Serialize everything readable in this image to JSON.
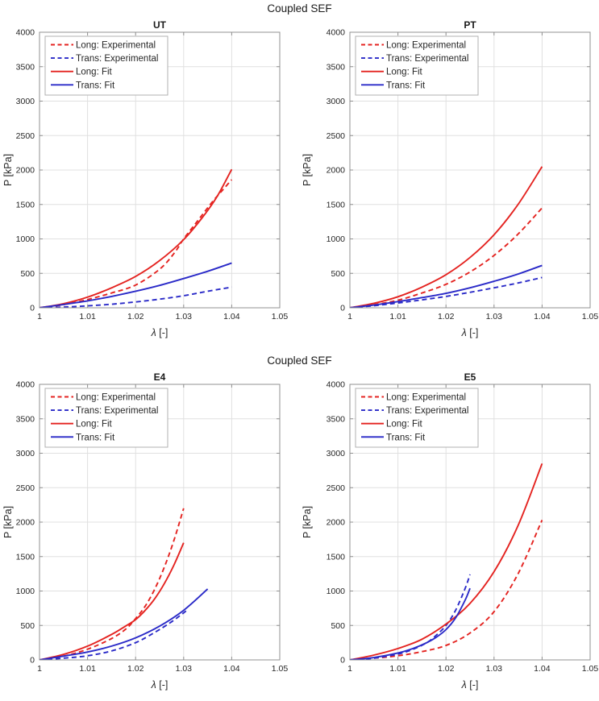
{
  "palette": {
    "red": "#e42320",
    "blue": "#2a2ac8",
    "axis": "#909090",
    "grid": "#e0e0e0",
    "text": "#262626",
    "title": "#1a1a1a",
    "legend_border": "#b0b0b0",
    "background": "#ffffff"
  },
  "figures": [
    {
      "suptitle": "Coupled SEF",
      "chart_indexes": [
        0,
        1
      ]
    },
    {
      "suptitle": "Coupled SEF",
      "chart_indexes": [
        2,
        3
      ]
    }
  ],
  "chart_data": [
    {
      "type": "line",
      "title": "UT",
      "xlabel": "λ [-]",
      "ylabel": "P [kPa]",
      "xlim": [
        1,
        1.05
      ],
      "ylim": [
        0,
        4000
      ],
      "xticks": [
        1,
        1.01,
        1.02,
        1.03,
        1.04,
        1.05
      ],
      "yticks": [
        0,
        500,
        1000,
        1500,
        2000,
        2500,
        3000,
        3500,
        4000
      ],
      "grid": true,
      "legend_position": "top-left",
      "legend_entries": [
        "Long: Experimental",
        "Trans: Experimental",
        "Long: Fit",
        "Trans: Fit"
      ],
      "series": [
        {
          "name": "Long: Experimental",
          "color": "#e42320",
          "style": "dashed",
          "x": [
            1,
            1.005,
            1.01,
            1.015,
            1.02,
            1.025,
            1.028,
            1.03,
            1.032,
            1.034,
            1.036,
            1.038,
            1.04
          ],
          "y": [
            0,
            45,
            120,
            215,
            330,
            560,
            790,
            1000,
            1180,
            1360,
            1540,
            1700,
            1860
          ]
        },
        {
          "name": "Trans: Experimental",
          "color": "#2a2ac8",
          "style": "dashed",
          "x": [
            1,
            1.005,
            1.01,
            1.015,
            1.02,
            1.025,
            1.03,
            1.035,
            1.04
          ],
          "y": [
            0,
            10,
            28,
            52,
            85,
            125,
            175,
            240,
            300
          ]
        },
        {
          "name": "Long: Fit",
          "color": "#e42320",
          "style": "solid",
          "x": [
            1,
            1.005,
            1.01,
            1.015,
            1.02,
            1.025,
            1.03,
            1.034,
            1.037,
            1.04
          ],
          "y": [
            0,
            60,
            155,
            290,
            455,
            685,
            990,
            1320,
            1620,
            2010
          ]
        },
        {
          "name": "Trans: Fit",
          "color": "#2a2ac8",
          "style": "solid",
          "x": [
            1,
            1.005,
            1.01,
            1.015,
            1.02,
            1.025,
            1.03,
            1.035,
            1.04
          ],
          "y": [
            0,
            48,
            100,
            165,
            240,
            325,
            425,
            530,
            650
          ]
        }
      ]
    },
    {
      "type": "line",
      "title": "PT",
      "xlabel": "λ [-]",
      "ylabel": "P [kPa]",
      "xlim": [
        1,
        1.05
      ],
      "ylim": [
        0,
        4000
      ],
      "xticks": [
        1,
        1.01,
        1.02,
        1.03,
        1.04,
        1.05
      ],
      "yticks": [
        0,
        500,
        1000,
        1500,
        2000,
        2500,
        3000,
        3500,
        4000
      ],
      "grid": true,
      "legend_position": "top-left",
      "legend_entries": [
        "Long: Experimental",
        "Trans: Experimental",
        "Long: Fit",
        "Trans: Fit"
      ],
      "series": [
        {
          "name": "Long: Experimental",
          "color": "#e42320",
          "style": "dashed",
          "x": [
            1,
            1.005,
            1.01,
            1.015,
            1.02,
            1.025,
            1.03,
            1.035,
            1.04
          ],
          "y": [
            0,
            45,
            110,
            215,
            340,
            520,
            760,
            1070,
            1450
          ]
        },
        {
          "name": "Trans: Experimental",
          "color": "#2a2ac8",
          "style": "dashed",
          "x": [
            1,
            1.005,
            1.01,
            1.015,
            1.02,
            1.025,
            1.03,
            1.035,
            1.04
          ],
          "y": [
            0,
            30,
            70,
            115,
            165,
            225,
            290,
            360,
            440
          ]
        },
        {
          "name": "Long: Fit",
          "color": "#e42320",
          "style": "solid",
          "x": [
            1,
            1.005,
            1.01,
            1.015,
            1.02,
            1.025,
            1.03,
            1.035,
            1.04
          ],
          "y": [
            0,
            65,
            160,
            300,
            480,
            730,
            1060,
            1500,
            2050
          ]
        },
        {
          "name": "Trans: Fit",
          "color": "#2a2ac8",
          "style": "solid",
          "x": [
            1,
            1.005,
            1.01,
            1.015,
            1.02,
            1.025,
            1.03,
            1.035,
            1.04
          ],
          "y": [
            0,
            40,
            90,
            148,
            210,
            290,
            385,
            490,
            615
          ]
        }
      ]
    },
    {
      "type": "line",
      "title": "E4",
      "xlabel": "λ [-]",
      "ylabel": "P [kPa]",
      "xlim": [
        1,
        1.05
      ],
      "ylim": [
        0,
        4000
      ],
      "xticks": [
        1,
        1.01,
        1.02,
        1.03,
        1.04,
        1.05
      ],
      "yticks": [
        0,
        500,
        1000,
        1500,
        2000,
        2500,
        3000,
        3500,
        4000
      ],
      "grid": true,
      "legend_position": "top-left",
      "legend_entries": [
        "Long: Experimental",
        "Trans: Experimental",
        "Long: Fit",
        "Trans: Fit"
      ],
      "series": [
        {
          "name": "Long: Experimental",
          "color": "#e42320",
          "style": "dashed",
          "x": [
            1,
            1.005,
            1.01,
            1.015,
            1.018,
            1.02,
            1.022,
            1.024,
            1.026,
            1.028,
            1.03
          ],
          "y": [
            0,
            55,
            155,
            310,
            450,
            600,
            780,
            1030,
            1350,
            1740,
            2200
          ]
        },
        {
          "name": "Trans: Experimental",
          "color": "#2a2ac8",
          "style": "dashed",
          "x": [
            1,
            1.005,
            1.01,
            1.015,
            1.02,
            1.024,
            1.027,
            1.029,
            1.0305
          ],
          "y": [
            0,
            25,
            60,
            130,
            250,
            400,
            530,
            630,
            710
          ]
        },
        {
          "name": "Long: Fit",
          "color": "#e42320",
          "style": "solid",
          "x": [
            1,
            1.005,
            1.01,
            1.015,
            1.018,
            1.02,
            1.022,
            1.024,
            1.026,
            1.028,
            1.03
          ],
          "y": [
            0,
            80,
            200,
            370,
            495,
            585,
            720,
            890,
            1110,
            1380,
            1700
          ]
        },
        {
          "name": "Trans: Fit",
          "color": "#2a2ac8",
          "style": "solid",
          "x": [
            1,
            1.005,
            1.01,
            1.015,
            1.02,
            1.025,
            1.03,
            1.035
          ],
          "y": [
            0,
            55,
            115,
            200,
            320,
            490,
            720,
            1030
          ]
        }
      ]
    },
    {
      "type": "line",
      "title": "E5",
      "xlabel": "λ [-]",
      "ylabel": "P [kPa]",
      "xlim": [
        1,
        1.05
      ],
      "ylim": [
        0,
        4000
      ],
      "xticks": [
        1,
        1.01,
        1.02,
        1.03,
        1.04,
        1.05
      ],
      "yticks": [
        0,
        500,
        1000,
        1500,
        2000,
        2500,
        3000,
        3500,
        4000
      ],
      "grid": true,
      "legend_position": "top-left",
      "legend_entries": [
        "Long: Experimental",
        "Trans: Experimental",
        "Long: Fit",
        "Trans: Fit"
      ],
      "series": [
        {
          "name": "Long: Experimental",
          "color": "#e42320",
          "style": "dashed",
          "x": [
            1,
            1.005,
            1.01,
            1.015,
            1.02,
            1.025,
            1.03,
            1.035,
            1.04
          ],
          "y": [
            0,
            25,
            60,
            120,
            210,
            390,
            700,
            1250,
            2030
          ]
        },
        {
          "name": "Trans: Experimental",
          "color": "#2a2ac8",
          "style": "dashed",
          "x": [
            1,
            1.005,
            1.01,
            1.013,
            1.016,
            1.018,
            1.02,
            1.022,
            1.024,
            1.025
          ],
          "y": [
            0,
            25,
            85,
            150,
            250,
            360,
            500,
            720,
            1040,
            1240
          ]
        },
        {
          "name": "Long: Fit",
          "color": "#e42320",
          "style": "solid",
          "x": [
            1,
            1.005,
            1.01,
            1.015,
            1.02,
            1.025,
            1.03,
            1.035,
            1.04
          ],
          "y": [
            0,
            70,
            165,
            300,
            520,
            820,
            1280,
            1950,
            2850
          ]
        },
        {
          "name": "Trans: Fit",
          "color": "#2a2ac8",
          "style": "solid",
          "x": [
            1,
            1.005,
            1.01,
            1.013,
            1.016,
            1.018,
            1.02,
            1.022,
            1.024,
            1.025
          ],
          "y": [
            0,
            35,
            100,
            162,
            250,
            330,
            440,
            610,
            870,
            1040
          ]
        }
      ]
    }
  ]
}
